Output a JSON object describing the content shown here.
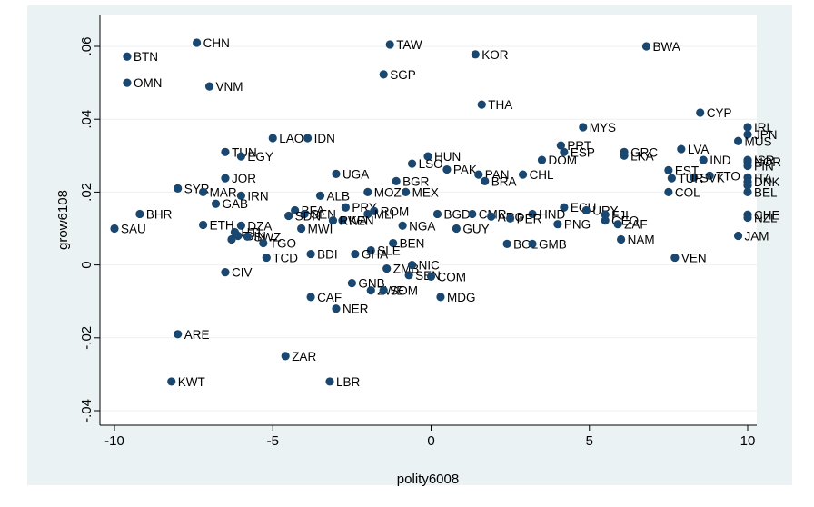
{
  "chart_data": {
    "type": "scatter",
    "xlabel": "polity6008",
    "ylabel": "grow6108",
    "xlim": [
      -10,
      10
    ],
    "ylim": [
      -0.04,
      0.06
    ],
    "xticks": [
      "-10",
      "-5",
      "0",
      "5",
      "10"
    ],
    "yticks": [
      "-.04",
      "-.02",
      "0",
      ".02",
      ".04",
      ".06"
    ],
    "xtick_values": [
      -10,
      -5,
      0,
      5,
      10
    ],
    "ytick_values": [
      -0.04,
      -0.02,
      0,
      0.02,
      0.04,
      0.06
    ],
    "grid": true,
    "colors": {
      "marker": "#1a476f",
      "plot_bg": "#ffffff",
      "outer_bg": "#eaf2f3",
      "grid": "#eaf2f3"
    },
    "points": [
      {
        "label": "CHN",
        "x": -7.4,
        "y": 0.061
      },
      {
        "label": "TAW",
        "x": -1.3,
        "y": 0.0605
      },
      {
        "label": "BWA",
        "x": 6.8,
        "y": 0.06
      },
      {
        "label": "BTN",
        "x": -9.6,
        "y": 0.0572
      },
      {
        "label": "KOR",
        "x": 1.4,
        "y": 0.0578
      },
      {
        "label": "SGP",
        "x": -1.5,
        "y": 0.0523
      },
      {
        "label": "OMN",
        "x": -9.6,
        "y": 0.05
      },
      {
        "label": "VNM",
        "x": -7.0,
        "y": 0.049
      },
      {
        "label": "THA",
        "x": 1.6,
        "y": 0.044
      },
      {
        "label": "CYP",
        "x": 8.5,
        "y": 0.0418
      },
      {
        "label": "MYS",
        "x": 4.8,
        "y": 0.0378
      },
      {
        "label": "IRL",
        "x": 10.0,
        "y": 0.0378
      },
      {
        "label": "JPN",
        "x": 10.0,
        "y": 0.0358
      },
      {
        "label": "MUS",
        "x": 9.7,
        "y": 0.034
      },
      {
        "label": "LAO",
        "x": -5.0,
        "y": 0.0348
      },
      {
        "label": "IDN",
        "x": -3.9,
        "y": 0.0348
      },
      {
        "label": "PRT",
        "x": 4.1,
        "y": 0.0328
      },
      {
        "label": "LVA",
        "x": 7.9,
        "y": 0.0318
      },
      {
        "label": "ESP",
        "x": 4.2,
        "y": 0.031
      },
      {
        "label": "GRC",
        "x": 6.1,
        "y": 0.031
      },
      {
        "label": "TUN",
        "x": -6.5,
        "y": 0.031
      },
      {
        "label": "HUN",
        "x": -0.1,
        "y": 0.0298
      },
      {
        "label": "EGY",
        "x": -6.0,
        "y": 0.0298
      },
      {
        "label": "LKA",
        "x": 6.1,
        "y": 0.03
      },
      {
        "label": "DOM",
        "x": 3.5,
        "y": 0.0288
      },
      {
        "label": "IND",
        "x": 8.6,
        "y": 0.0288
      },
      {
        "label": "ISR",
        "x": 10.0,
        "y": 0.0288
      },
      {
        "label": "NOR",
        "x": 10.0,
        "y": 0.0283
      },
      {
        "label": "LSO",
        "x": -0.6,
        "y": 0.0278
      },
      {
        "label": "FIN",
        "x": 10.0,
        "y": 0.0272
      },
      {
        "label": "PAK",
        "x": 0.5,
        "y": 0.0262
      },
      {
        "label": "EST",
        "x": 7.5,
        "y": 0.026
      },
      {
        "label": "UGA",
        "x": -3.0,
        "y": 0.025
      },
      {
        "label": "PAN",
        "x": 1.5,
        "y": 0.0248
      },
      {
        "label": "CHL",
        "x": 2.9,
        "y": 0.0248
      },
      {
        "label": "TTO",
        "x": 8.8,
        "y": 0.0245
      },
      {
        "label": "SVK",
        "x": 8.3,
        "y": 0.024
      },
      {
        "label": "ITA",
        "x": 10.0,
        "y": 0.024
      },
      {
        "label": "TUR",
        "x": 7.6,
        "y": 0.0238
      },
      {
        "label": "JOR",
        "x": -6.5,
        "y": 0.0238
      },
      {
        "label": "BRA",
        "x": 1.7,
        "y": 0.023
      },
      {
        "label": "BGR",
        "x": -1.1,
        "y": 0.023
      },
      {
        "label": "PRY",
        "x": -2.7,
        "y": 0.0158
      },
      {
        "label": "DNK",
        "x": 10.0,
        "y": 0.0228
      },
      {
        "label": "ESP2",
        "x": 10.0,
        "y": 0.0218
      },
      {
        "label": "SYR",
        "x": -8.0,
        "y": 0.021
      },
      {
        "label": "MAR",
        "x": -7.2,
        "y": 0.02
      },
      {
        "label": "MOZ",
        "x": -2.0,
        "y": 0.02
      },
      {
        "label": "MEX",
        "x": -0.8,
        "y": 0.02
      },
      {
        "label": "COL",
        "x": 7.5,
        "y": 0.02
      },
      {
        "label": "BEL",
        "x": 10.0,
        "y": 0.02
      },
      {
        "label": "IRN",
        "x": -6.0,
        "y": 0.019
      },
      {
        "label": "ALB",
        "x": -3.5,
        "y": 0.019
      },
      {
        "label": "GAB",
        "x": -6.8,
        "y": 0.0168
      },
      {
        "label": "BFA",
        "x": -4.3,
        "y": 0.015
      },
      {
        "label": "ROM",
        "x": -1.8,
        "y": 0.0148
      },
      {
        "label": "MLI",
        "x": -2.0,
        "y": 0.014
      },
      {
        "label": "ECU",
        "x": 4.2,
        "y": 0.0158
      },
      {
        "label": "URY",
        "x": 4.9,
        "y": 0.015
      },
      {
        "label": "FJI",
        "x": 5.5,
        "y": 0.0138
      },
      {
        "label": "BHR",
        "x": -9.2,
        "y": 0.014
      },
      {
        "label": "SEN",
        "x": -4.0,
        "y": 0.014
      },
      {
        "label": "BGD",
        "x": 0.2,
        "y": 0.014
      },
      {
        "label": "CMR",
        "x": 1.3,
        "y": 0.014
      },
      {
        "label": "ARG",
        "x": 1.9,
        "y": 0.0133
      },
      {
        "label": "HND",
        "x": 3.2,
        "y": 0.014
      },
      {
        "label": "CHE",
        "x": 10.0,
        "y": 0.0138
      },
      {
        "label": "SDN",
        "x": -4.5,
        "y": 0.0135
      },
      {
        "label": "NZL",
        "x": 10.0,
        "y": 0.013
      },
      {
        "label": "PER",
        "x": 2.5,
        "y": 0.0128
      },
      {
        "label": "KEN",
        "x": -2.8,
        "y": 0.0122
      },
      {
        "label": "RWA",
        "x": -3.1,
        "y": 0.0122
      },
      {
        "label": "GEO",
        "x": 5.5,
        "y": 0.0122
      },
      {
        "label": "ZAF",
        "x": 5.9,
        "y": 0.0112
      },
      {
        "label": "PNG",
        "x": 4.0,
        "y": 0.0112
      },
      {
        "label": "ETH",
        "x": -7.2,
        "y": 0.011
      },
      {
        "label": "DZA",
        "x": -6.0,
        "y": 0.0108
      },
      {
        "label": "NGA",
        "x": -0.9,
        "y": 0.0108
      },
      {
        "label": "SAU",
        "x": -10.0,
        "y": 0.01
      },
      {
        "label": "MWI",
        "x": -4.1,
        "y": 0.01
      },
      {
        "label": "GUY",
        "x": 0.8,
        "y": 0.01
      },
      {
        "label": "HTI",
        "x": -6.2,
        "y": 0.009
      },
      {
        "label": "GIN",
        "x": -6.1,
        "y": 0.008
      },
      {
        "label": "SWZ",
        "x": -5.8,
        "y": 0.0078
      },
      {
        "label": "CMR2",
        "x": -6.3,
        "y": 0.007
      },
      {
        "label": "TGO",
        "x": -5.3,
        "y": 0.006
      },
      {
        "label": "JAM",
        "x": 9.7,
        "y": 0.008
      },
      {
        "label": "NAM",
        "x": 6.0,
        "y": 0.007
      },
      {
        "label": "BEN",
        "x": -1.2,
        "y": 0.006
      },
      {
        "label": "BOL",
        "x": 2.4,
        "y": 0.0058
      },
      {
        "label": "GMB",
        "x": 3.2,
        "y": 0.0058
      },
      {
        "label": "SLE",
        "x": -1.9,
        "y": 0.004
      },
      {
        "label": "BDI",
        "x": -3.8,
        "y": 0.003
      },
      {
        "label": "GHA",
        "x": -2.4,
        "y": 0.003
      },
      {
        "label": "TCD",
        "x": -5.2,
        "y": 0.002
      },
      {
        "label": "VEN",
        "x": 7.7,
        "y": 0.002
      },
      {
        "label": "ZMB",
        "x": -1.4,
        "y": -0.001
      },
      {
        "label": "NIC",
        "x": -0.6,
        "y": 0.0
      },
      {
        "label": "SEN2",
        "x": -0.7,
        "y": -0.0028
      },
      {
        "label": "COM",
        "x": 0.0,
        "y": -0.0032
      },
      {
        "label": "CIV",
        "x": -6.5,
        "y": -0.002
      },
      {
        "label": "GNB",
        "x": -2.5,
        "y": -0.005
      },
      {
        "label": "ZAR2",
        "x": -1.9,
        "y": -0.007
      },
      {
        "label": "SOM",
        "x": -1.5,
        "y": -0.007
      },
      {
        "label": "CAF",
        "x": -3.8,
        "y": -0.0088
      },
      {
        "label": "MDG",
        "x": 0.3,
        "y": -0.0088
      },
      {
        "label": "NER",
        "x": -3.0,
        "y": -0.012
      },
      {
        "label": "ARE",
        "x": -8.0,
        "y": -0.019
      },
      {
        "label": "ZAR",
        "x": -4.6,
        "y": -0.025
      },
      {
        "label": "KWT",
        "x": -8.2,
        "y": -0.032
      },
      {
        "label": "LBR",
        "x": -3.2,
        "y": -0.032
      }
    ],
    "visible_labels": {
      "ESP2": "",
      "CMR2": "",
      "SEN2": "SEN",
      "ZAR2": "ZWE"
    }
  }
}
